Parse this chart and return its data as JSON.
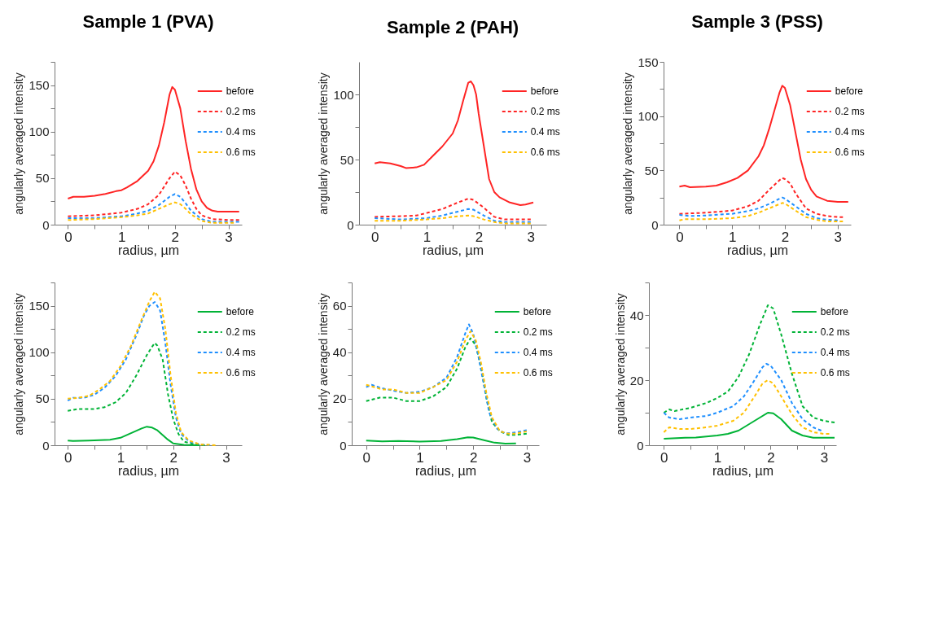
{
  "chart_data": [
    {
      "type": "line",
      "title": "Sample 1 (PVA)",
      "xlabel": "radius, µm",
      "ylabel": "angularly averaged intensity",
      "xlim": [
        -0.25,
        3.25
      ],
      "ylim": [
        0,
        175
      ],
      "xticks": [
        0,
        {
          "value": 0.5,
          "label": null
        },
        1,
        {
          "value": 1.5,
          "label": null
        },
        2,
        {
          "value": 2.5,
          "label": null
        },
        3
      ],
      "yticks": [
        0,
        {
          "value": 25,
          "label": null
        },
        50,
        {
          "value": 75,
          "label": null
        },
        100,
        {
          "value": 125,
          "label": null
        },
        150,
        {
          "value": 175,
          "label": null
        }
      ],
      "legend": "top right",
      "series": [
        {
          "name": "before",
          "color": "#ff2424",
          "line_style": "solid",
          "x": [
            0,
            0.1,
            0.3,
            0.5,
            0.7,
            0.9,
            1.0,
            1.1,
            1.3,
            1.5,
            1.6,
            1.7,
            1.8,
            1.9,
            1.95,
            2.0,
            2.1,
            2.2,
            2.3,
            2.4,
            2.5,
            2.6,
            2.7,
            2.8,
            3.0,
            3.2
          ],
          "values": [
            28,
            30,
            30,
            31,
            33,
            36,
            37,
            40,
            47,
            58,
            68,
            85,
            110,
            140,
            148,
            145,
            125,
            90,
            60,
            38,
            25,
            18,
            15,
            14,
            14,
            14
          ]
        },
        {
          "name": "0.2 ms",
          "color": "#ff2424",
          "line_style": "dashed",
          "x": [
            0,
            0.5,
            1.0,
            1.3,
            1.5,
            1.7,
            1.9,
            2.0,
            2.1,
            2.2,
            2.3,
            2.4,
            2.5,
            2.7,
            3.0,
            3.2
          ],
          "values": [
            9,
            10,
            13,
            17,
            22,
            32,
            50,
            57,
            53,
            42,
            28,
            17,
            10,
            6,
            5,
            5
          ]
        },
        {
          "name": "0.4 ms",
          "color": "#1e8fff",
          "line_style": "dashed",
          "x": [
            0,
            0.5,
            1.0,
            1.3,
            1.5,
            1.7,
            1.9,
            2.0,
            2.1,
            2.2,
            2.3,
            2.5,
            2.7,
            3.0,
            3.2
          ],
          "values": [
            7,
            7,
            9,
            12,
            15,
            21,
            30,
            33,
            30,
            23,
            15,
            6,
            3,
            3,
            3
          ]
        },
        {
          "name": "0.6 ms",
          "color": "#ffc000",
          "line_style": "dashed",
          "x": [
            0,
            0.5,
            1.0,
            1.3,
            1.5,
            1.7,
            1.9,
            2.0,
            2.1,
            2.2,
            2.3,
            2.5,
            2.7,
            3.0,
            3.1
          ],
          "values": [
            5,
            6,
            8,
            10,
            12,
            17,
            22,
            24,
            22,
            17,
            11,
            4,
            2,
            2,
            2
          ]
        }
      ]
    },
    {
      "type": "line",
      "title": "Sample 2 (PAH)",
      "xlabel": "radius, µm",
      "ylabel": "angularly averaged intensity",
      "xlim": [
        -0.3,
        3.3
      ],
      "ylim": [
        0,
        125
      ],
      "xticks": [
        0,
        {
          "value": 0.5,
          "label": null
        },
        1,
        {
          "value": 1.5,
          "label": null
        },
        2,
        {
          "value": 2.5,
          "label": null
        },
        3
      ],
      "yticks": [
        0,
        {
          "value": 25,
          "label": null
        },
        50,
        {
          "value": 75,
          "label": null
        },
        100
      ],
      "legend": "top right",
      "series": [
        {
          "name": "before",
          "color": "#ff2424",
          "line_style": "solid",
          "x": [
            0,
            0.1,
            0.3,
            0.5,
            0.6,
            0.8,
            0.95,
            1.1,
            1.3,
            1.5,
            1.6,
            1.7,
            1.8,
            1.85,
            1.9,
            1.95,
            2.0,
            2.1,
            2.2,
            2.3,
            2.4,
            2.6,
            2.8,
            2.9,
            3.05
          ],
          "values": [
            47,
            48,
            47,
            45,
            43.5,
            44,
            46,
            52,
            60,
            70,
            80,
            95,
            109,
            110,
            107,
            100,
            85,
            60,
            35,
            25,
            21,
            17,
            15,
            15.5,
            17
          ]
        },
        {
          "name": "0.2 ms",
          "color": "#ff2424",
          "line_style": "dashed",
          "x": [
            0,
            0.5,
            0.8,
            1.0,
            1.3,
            1.6,
            1.8,
            1.9,
            2.1,
            2.3,
            2.5,
            3.0
          ],
          "values": [
            6,
            6.5,
            7,
            9,
            12,
            17,
            20,
            19,
            13,
            6,
            4,
            4
          ]
        },
        {
          "name": "0.4 ms",
          "color": "#1e8fff",
          "line_style": "dashed",
          "x": [
            0,
            0.5,
            1.0,
            1.3,
            1.6,
            1.8,
            1.9,
            2.1,
            2.3,
            2.5,
            3.0
          ],
          "values": [
            5,
            4,
            5,
            7,
            10,
            12,
            11.5,
            7,
            3,
            2,
            2
          ]
        },
        {
          "name": "0.6 ms",
          "color": "#ffc000",
          "line_style": "dashed",
          "x": [
            0,
            0.5,
            1.0,
            1.3,
            1.6,
            1.8,
            1.9,
            2.1,
            2.3,
            2.5,
            3.0
          ],
          "values": [
            3,
            3,
            4,
            5,
            6.5,
            7,
            6.5,
            4,
            2,
            1,
            1
          ]
        }
      ]
    },
    {
      "type": "line",
      "title": "Sample 3 (PSS)",
      "xlabel": "radius, µm",
      "ylabel": "angularly averaged intensity",
      "xlim": [
        -0.3,
        3.25
      ],
      "ylim": [
        0,
        150
      ],
      "xticks": [
        0,
        {
          "value": 0.5,
          "label": null
        },
        1,
        {
          "value": 1.5,
          "label": null
        },
        2,
        {
          "value": 2.5,
          "label": null
        },
        3
      ],
      "yticks": [
        0,
        {
          "value": 25,
          "label": null
        },
        50,
        {
          "value": 75,
          "label": null
        },
        100,
        {
          "value": 125,
          "label": null
        },
        150
      ],
      "legend": "top right",
      "series": [
        {
          "name": "before",
          "color": "#ff2424",
          "line_style": "solid",
          "x": [
            0,
            0.1,
            0.2,
            0.5,
            0.7,
            0.9,
            1.1,
            1.3,
            1.5,
            1.6,
            1.7,
            1.8,
            1.9,
            1.95,
            2.0,
            2.1,
            2.2,
            2.3,
            2.4,
            2.5,
            2.6,
            2.8,
            3.0,
            3.2
          ],
          "values": [
            35,
            36,
            34.5,
            35,
            36,
            39,
            43,
            50,
            63,
            73,
            88,
            105,
            122,
            128,
            126,
            110,
            85,
            60,
            42,
            32,
            26,
            22,
            21,
            21
          ]
        },
        {
          "name": "0.2 ms",
          "color": "#ff2424",
          "line_style": "dashed",
          "x": [
            0,
            0.5,
            1.0,
            1.3,
            1.5,
            1.7,
            1.9,
            1.95,
            2.0,
            2.1,
            2.2,
            2.4,
            2.6,
            2.8,
            3.0,
            3.1
          ],
          "values": [
            10,
            11,
            13,
            17,
            22,
            32,
            41,
            43,
            42,
            38,
            29,
            15,
            10,
            8,
            7,
            7
          ]
        },
        {
          "name": "0.4 ms",
          "color": "#1e8fff",
          "line_style": "dashed",
          "x": [
            0,
            0.2,
            0.5,
            1.0,
            1.3,
            1.5,
            1.7,
            1.9,
            1.95,
            2.0,
            2.2,
            2.4,
            2.6,
            2.8,
            3.0
          ],
          "values": [
            9,
            8,
            8.5,
            10,
            12.5,
            15,
            19,
            24,
            25,
            24,
            17,
            10,
            6,
            4.5,
            4
          ]
        },
        {
          "name": "0.6 ms",
          "color": "#ffc000",
          "line_style": "dashed",
          "x": [
            0,
            0.1,
            0.5,
            1.0,
            1.3,
            1.5,
            1.7,
            1.9,
            1.95,
            2.0,
            2.2,
            2.4,
            2.6,
            2.8,
            3.0,
            3.1
          ],
          "values": [
            4,
            5,
            5,
            6,
            8,
            11,
            15,
            19,
            20,
            19.5,
            13,
            7,
            4.5,
            3,
            3,
            3
          ]
        }
      ]
    },
    {
      "type": "line",
      "xlabel": "radius, µm",
      "ylabel": "angularly averaged intensity",
      "xlim": [
        -0.25,
        3.3
      ],
      "ylim": [
        0,
        175
      ],
      "xticks": [
        0,
        {
          "value": 0.5,
          "label": null
        },
        1,
        {
          "value": 1.5,
          "label": null
        },
        2,
        {
          "value": 2.5,
          "label": null
        },
        3
      ],
      "yticks": [
        0,
        {
          "value": 25,
          "label": null
        },
        50,
        {
          "value": 75,
          "label": null
        },
        100,
        {
          "value": 125,
          "label": null
        },
        150,
        {
          "value": 175,
          "label": null
        }
      ],
      "legend": "top right",
      "series": [
        {
          "name": "before",
          "color": "#00b336",
          "line_style": "solid",
          "x": [
            0,
            0.1,
            0.4,
            0.8,
            1.0,
            1.2,
            1.4,
            1.5,
            1.6,
            1.7,
            1.8,
            1.9,
            2.0,
            2.2,
            2.5
          ],
          "values": [
            5,
            4.5,
            5,
            6,
            8,
            13,
            18,
            20,
            19,
            16,
            11,
            6,
            2,
            0.5,
            0
          ]
        },
        {
          "name": "0.2 ms",
          "color": "#00b336",
          "line_style": "dashed",
          "x": [
            0,
            0.2,
            0.5,
            0.7,
            0.9,
            1.1,
            1.3,
            1.5,
            1.6,
            1.65,
            1.7,
            1.8,
            1.9,
            2.0,
            2.1,
            2.2,
            2.4,
            2.6
          ],
          "values": [
            37,
            39,
            39,
            41,
            46,
            56,
            75,
            97,
            106,
            110,
            107,
            92,
            55,
            28,
            12,
            4,
            1,
            0
          ]
        },
        {
          "name": "0.4 ms",
          "color": "#1e8fff",
          "line_style": "dashed",
          "x": [
            0,
            0.1,
            0.3,
            0.5,
            0.7,
            0.9,
            1.1,
            1.3,
            1.45,
            1.55,
            1.65,
            1.75,
            1.85,
            1.95,
            2.05,
            2.15,
            2.3,
            2.5,
            2.7
          ],
          "values": [
            48,
            51,
            51,
            54,
            62,
            74,
            92,
            118,
            140,
            150,
            154,
            145,
            110,
            65,
            30,
            12,
            4,
            1,
            0
          ]
        },
        {
          "name": "0.6 ms",
          "color": "#ffc000",
          "line_style": "dashed",
          "x": [
            0,
            0.2,
            0.4,
            0.6,
            0.8,
            1.0,
            1.2,
            1.4,
            1.55,
            1.65,
            1.75,
            1.85,
            1.95,
            2.05,
            2.15,
            2.3,
            2.5,
            2.8
          ],
          "values": [
            50,
            51,
            53,
            60,
            69,
            85,
            107,
            135,
            155,
            165,
            158,
            125,
            75,
            35,
            14,
            5,
            1,
            0
          ]
        }
      ]
    },
    {
      "type": "line",
      "xlabel": "radius, µm",
      "ylabel": "angularly averaged intensity",
      "xlim": [
        -0.27,
        3.23
      ],
      "ylim": [
        0,
        70
      ],
      "xticks": [
        0,
        {
          "value": 0.5,
          "label": null
        },
        1,
        {
          "value": 1.5,
          "label": null
        },
        2,
        {
          "value": 2.5,
          "label": null
        },
        3
      ],
      "yticks": [
        0,
        {
          "value": 10,
          "label": null
        },
        20,
        {
          "value": 30,
          "label": null
        },
        40,
        {
          "value": 50,
          "label": null
        },
        60,
        {
          "value": 70,
          "label": null
        }
      ],
      "legend": "top right",
      "series": [
        {
          "name": "before",
          "color": "#00b336",
          "line_style": "solid",
          "x": [
            0,
            0.3,
            0.6,
            1.0,
            1.4,
            1.7,
            1.9,
            2.0,
            2.2,
            2.4,
            2.6,
            2.8
          ],
          "values": [
            2,
            1.7,
            1.8,
            1.6,
            1.8,
            2.6,
            3.4,
            3.3,
            2.2,
            1.1,
            0.7,
            0.8
          ]
        },
        {
          "name": "0.2 ms",
          "color": "#00b336",
          "line_style": "dashed",
          "x": [
            0,
            0.25,
            0.5,
            0.75,
            1.0,
            1.25,
            1.5,
            1.7,
            1.85,
            1.95,
            2.05,
            2.15,
            2.25,
            2.35,
            2.5,
            2.65,
            2.8,
            3.0
          ],
          "values": [
            19,
            20.5,
            20.5,
            19,
            19,
            21,
            25,
            33,
            42,
            46,
            43,
            33,
            20,
            10,
            6,
            4.5,
            4.5,
            5
          ]
        },
        {
          "name": "0.4 ms",
          "color": "#1e8fff",
          "line_style": "dashed",
          "x": [
            0,
            0.1,
            0.3,
            0.5,
            0.75,
            1.0,
            1.25,
            1.5,
            1.7,
            1.85,
            1.92,
            2.0,
            2.1,
            2.2,
            2.3,
            2.45,
            2.6,
            2.8,
            3.0
          ],
          "values": [
            25,
            26,
            24.5,
            23.5,
            22.5,
            23,
            25,
            29,
            38,
            48,
            52,
            48,
            38,
            26,
            14,
            7,
            5,
            5.5,
            6.5
          ]
        },
        {
          "name": "0.6 ms",
          "color": "#ffc000",
          "line_style": "dashed",
          "x": [
            0,
            0.3,
            0.5,
            0.75,
            1.0,
            1.25,
            1.5,
            1.7,
            1.85,
            1.95,
            2.05,
            2.15,
            2.25,
            2.35,
            2.5,
            2.65,
            2.8,
            3.0
          ],
          "values": [
            26,
            24,
            24,
            22.5,
            22.5,
            25,
            28,
            36,
            45,
            49,
            45,
            35,
            22,
            12,
            6,
            5,
            5,
            6
          ]
        }
      ]
    },
    {
      "type": "line",
      "xlabel": "radius, µm",
      "ylabel": "angularly averaged intensity",
      "xlim": [
        -0.28,
        3.23
      ],
      "ylim": [
        0,
        50
      ],
      "xticks": [
        0,
        {
          "value": 0.5,
          "label": null
        },
        1,
        {
          "value": 1.5,
          "label": null
        },
        2,
        {
          "value": 2.5,
          "label": null
        },
        3
      ],
      "yticks": [
        0,
        {
          "value": 10,
          "label": null
        },
        20,
        {
          "value": 30,
          "label": null
        },
        40,
        {
          "value": 50,
          "label": null
        }
      ],
      "legend": "top right",
      "series": [
        {
          "name": "before",
          "color": "#00b336",
          "line_style": "solid",
          "x": [
            0,
            0.4,
            0.6,
            1.0,
            1.2,
            1.4,
            1.6,
            1.8,
            1.95,
            2.05,
            2.2,
            2.4,
            2.6,
            2.8,
            3.2
          ],
          "values": [
            2,
            2.3,
            2.4,
            3,
            3.5,
            4.5,
            6.5,
            8.5,
            10,
            9.8,
            8,
            4.5,
            3,
            2.3,
            2.3
          ]
        },
        {
          "name": "0.2 ms",
          "color": "#00b336",
          "line_style": "dashed",
          "x": [
            0,
            0.1,
            0.2,
            0.5,
            0.8,
            1.0,
            1.2,
            1.4,
            1.6,
            1.8,
            1.95,
            2.05,
            2.2,
            2.4,
            2.6,
            2.8,
            3.0,
            3.2
          ],
          "values": [
            10,
            11,
            10.5,
            11.5,
            13,
            14.5,
            16.5,
            21,
            28,
            37,
            43,
            42,
            34,
            22,
            12,
            8.5,
            7.5,
            7
          ]
        },
        {
          "name": "0.4 ms",
          "color": "#1e8fff",
          "line_style": "dashed",
          "x": [
            0,
            0.1,
            0.3,
            0.5,
            0.8,
            1.0,
            1.3,
            1.5,
            1.7,
            1.85,
            1.92,
            2.0,
            2.2,
            2.4,
            2.6,
            2.8,
            2.95
          ],
          "values": [
            10,
            8.5,
            8,
            8.5,
            9,
            10,
            12,
            15,
            20,
            24,
            25,
            24.5,
            20,
            13,
            8,
            5.5,
            4.5
          ]
        },
        {
          "name": "0.6 ms",
          "color": "#ffc000",
          "line_style": "dashed",
          "x": [
            0,
            0.1,
            0.3,
            0.5,
            0.8,
            1.0,
            1.3,
            1.5,
            1.7,
            1.85,
            1.95,
            2.05,
            2.2,
            2.4,
            2.6,
            2.8,
            3.0,
            3.1
          ],
          "values": [
            4,
            5.5,
            5,
            5,
            5.5,
            6,
            7.5,
            10,
            15,
            19,
            20,
            19,
            15,
            9.5,
            5.5,
            4,
            3.5,
            3.5
          ]
        }
      ]
    }
  ]
}
